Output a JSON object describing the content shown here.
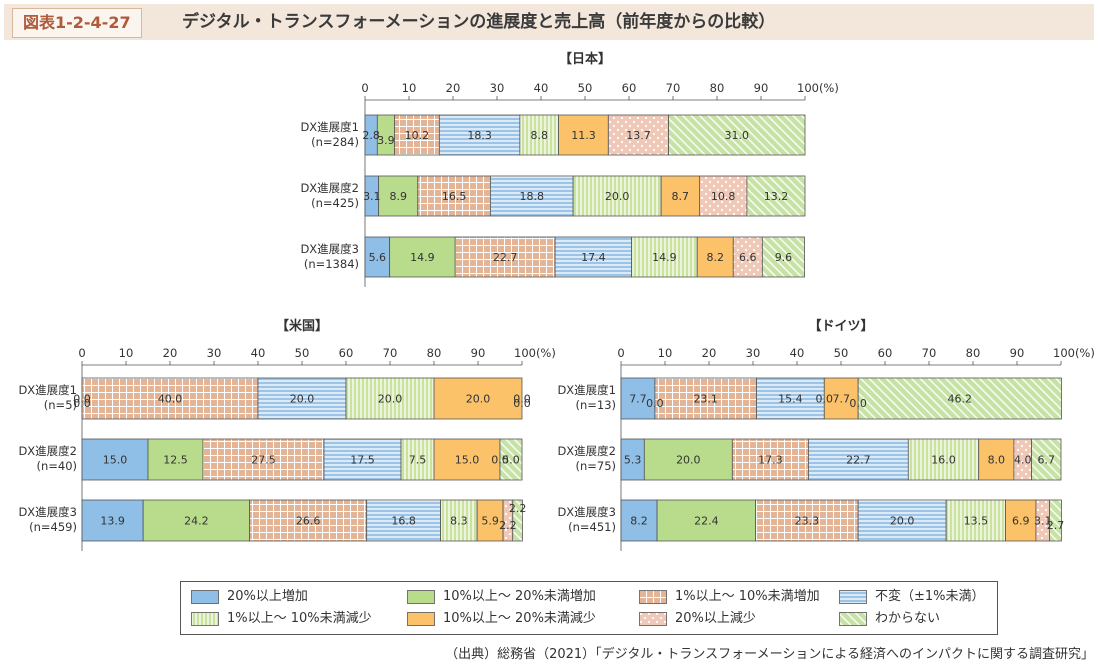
{
  "header": {
    "figure_label": "図表1-2-4-27",
    "title": "デジタル・トランスフォーメーションの進展度と売上高（前年度からの比較）"
  },
  "legend": [
    {
      "label": "20%以上増加",
      "pattern": "blue"
    },
    {
      "label": "10%以上～ 20%未満増加",
      "pattern": "green"
    },
    {
      "label": "1%以上～ 10%未満増加",
      "pattern": "brown-grid"
    },
    {
      "label": "不変（±1%未満）",
      "pattern": "blue-hstripe"
    },
    {
      "label": "1%以上～ 10%未満減少",
      "pattern": "green-vstripe"
    },
    {
      "label": "10%以上～ 20%未満減少",
      "pattern": "orange"
    },
    {
      "label": "20%以上減少",
      "pattern": "pink-dots"
    },
    {
      "label": "わからない",
      "pattern": "green-diag"
    }
  ],
  "colors": {
    "blue": "#8fbfe6",
    "green": "#b9dc8c",
    "brown": "#e3b596",
    "stripe_blue": "#9cc4e8",
    "stripe_green": "#c9e29e",
    "orange": "#fbc26a",
    "pink": "#f0c8b8",
    "diag_green": "#c6e2a4"
  },
  "source": "（出典）総務省（2021）「デジタル・トランスフォーメーションによる経済へのインパクトに関する調査研究」",
  "chart_data": [
    {
      "type": "bar",
      "stacked": true,
      "orientation": "horizontal",
      "title": "【日本】",
      "x_ticks": [
        "0",
        "10",
        "20",
        "30",
        "40",
        "50",
        "60",
        "70",
        "80",
        "90",
        "100(%)"
      ],
      "xlim": [
        0,
        100
      ],
      "categories": [
        {
          "label": "DX進展度1",
          "n": "(n=284)"
        },
        {
          "label": "DX進展度2",
          "n": "(n=425)"
        },
        {
          "label": "DX進展度3",
          "n": "(n=1384)"
        }
      ],
      "values": [
        [
          2.8,
          3.9,
          10.2,
          18.3,
          8.8,
          11.3,
          13.7,
          31.0
        ],
        [
          3.1,
          8.9,
          16.5,
          18.8,
          20.0,
          8.7,
          10.8,
          13.2
        ],
        [
          5.6,
          14.9,
          22.7,
          17.4,
          14.9,
          8.2,
          6.6,
          9.6
        ]
      ]
    },
    {
      "type": "bar",
      "stacked": true,
      "orientation": "horizontal",
      "title": "【米国】",
      "x_ticks": [
        "0",
        "10",
        "20",
        "30",
        "40",
        "50",
        "60",
        "70",
        "80",
        "90",
        "100(%)"
      ],
      "xlim": [
        0,
        100
      ],
      "categories": [
        {
          "label": "DX進展度1",
          "n": "(n=5)"
        },
        {
          "label": "DX進展度2",
          "n": "(n=40)"
        },
        {
          "label": "DX進展度3",
          "n": "(n=459)"
        }
      ],
      "values": [
        [
          0.0,
          0.0,
          40.0,
          20.0,
          20.0,
          20.0,
          0.0,
          0.0
        ],
        [
          15.0,
          12.5,
          27.5,
          17.5,
          7.5,
          15.0,
          0.0,
          5.0
        ],
        [
          13.9,
          24.2,
          26.6,
          16.8,
          8.3,
          5.9,
          2.2,
          2.2
        ]
      ]
    },
    {
      "type": "bar",
      "stacked": true,
      "orientation": "horizontal",
      "title": "【ドイツ】",
      "x_ticks": [
        "0",
        "10",
        "20",
        "30",
        "40",
        "50",
        "60",
        "70",
        "80",
        "90",
        "100(%)"
      ],
      "xlim": [
        0,
        100
      ],
      "categories": [
        {
          "label": "DX進展度1",
          "n": "(n=13)"
        },
        {
          "label": "DX進展度2",
          "n": "(n=75)"
        },
        {
          "label": "DX進展度3",
          "n": "(n=451)"
        }
      ],
      "values": [
        [
          7.7,
          0.0,
          23.1,
          15.4,
          0.0,
          7.7,
          0.0,
          46.2
        ],
        [
          5.3,
          20.0,
          17.3,
          22.7,
          16.0,
          8.0,
          4.0,
          6.7
        ],
        [
          8.2,
          22.4,
          23.3,
          20.0,
          13.5,
          6.9,
          3.1,
          2.7
        ]
      ]
    }
  ]
}
